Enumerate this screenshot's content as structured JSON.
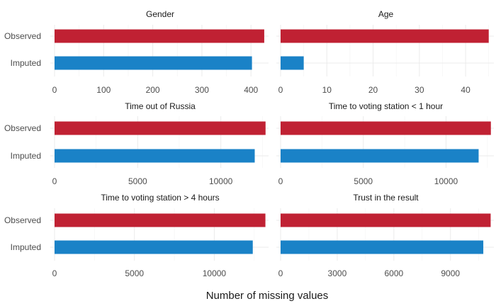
{
  "chart_data": {
    "type": "bar",
    "orientation": "horizontal",
    "categories": [
      "Observed",
      "Imputed"
    ],
    "colors": {
      "Observed": "#c02133",
      "Imputed": "#1a82c7"
    },
    "xlabel": "Number of missing values",
    "ylabel": "",
    "grid": true,
    "legend": "none",
    "facets": [
      {
        "title": "Gender",
        "values": [
          427,
          402
        ],
        "xlim": [
          0,
          430
        ],
        "ticks": [
          0,
          100,
          200,
          300,
          400
        ]
      },
      {
        "title": "Age",
        "values": [
          45,
          5
        ],
        "xlim": [
          0,
          45.5
        ],
        "ticks": [
          0,
          10,
          20,
          30,
          40
        ]
      },
      {
        "title": "Time out of Russia",
        "values": [
          12690,
          12040
        ],
        "xlim": [
          0,
          12700
        ],
        "ticks": [
          0,
          5000,
          10000
        ]
      },
      {
        "title": "Time to voting station < 1 hour",
        "values": [
          12710,
          11970
        ],
        "xlim": [
          0,
          12720
        ],
        "ticks": [
          0,
          5000,
          10000
        ]
      },
      {
        "title": "Time to voting station > 4 hours",
        "values": [
          13200,
          12410
        ],
        "xlim": [
          0,
          13220
        ],
        "ticks": [
          0,
          5000,
          10000
        ]
      },
      {
        "title": "Trust in the result",
        "values": [
          11130,
          10740
        ],
        "xlim": [
          0,
          11150
        ],
        "ticks": [
          0,
          3000,
          6000,
          9000
        ]
      }
    ]
  }
}
